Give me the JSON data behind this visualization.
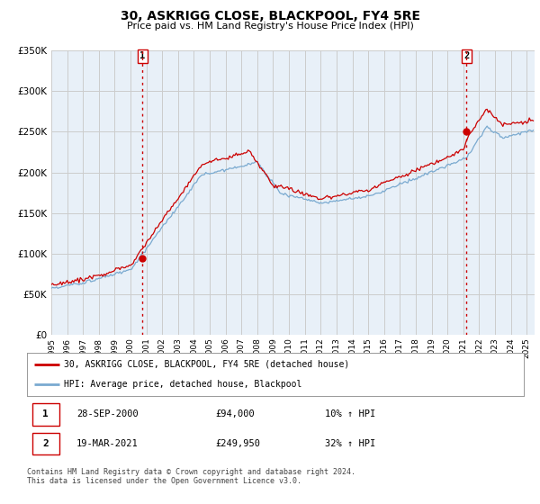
{
  "title": "30, ASKRIGG CLOSE, BLACKPOOL, FY4 5RE",
  "subtitle": "Price paid vs. HM Land Registry's House Price Index (HPI)",
  "ylim": [
    0,
    350000
  ],
  "xlim_start": 1995.0,
  "xlim_end": 2025.5,
  "transaction1": {
    "date_num": 2000.75,
    "price": 94000,
    "label": "1",
    "date_str": "28-SEP-2000",
    "price_str": "£94,000",
    "hpi_str": "10% ↑ HPI"
  },
  "transaction2": {
    "date_num": 2021.21,
    "price": 249950,
    "label": "2",
    "date_str": "19-MAR-2021",
    "price_str": "£249,950",
    "hpi_str": "32% ↑ HPI"
  },
  "line1_color": "#cc0000",
  "line2_color": "#7aaad0",
  "vline_color": "#cc0000",
  "grid_color": "#cccccc",
  "chart_bg": "#e8f0f8",
  "background_color": "#ffffff",
  "legend_label1": "30, ASKRIGG CLOSE, BLACKPOOL, FY4 5RE (detached house)",
  "legend_label2": "HPI: Average price, detached house, Blackpool",
  "footer": "Contains HM Land Registry data © Crown copyright and database right 2024.\nThis data is licensed under the Open Government Licence v3.0.",
  "note_box1": {
    "num": "1",
    "date": "28-SEP-2000",
    "price": "£94,000",
    "hpi": "10% ↑ HPI"
  },
  "note_box2": {
    "num": "2",
    "date": "19-MAR-2021",
    "price": "£249,950",
    "hpi": "32% ↑ HPI"
  }
}
